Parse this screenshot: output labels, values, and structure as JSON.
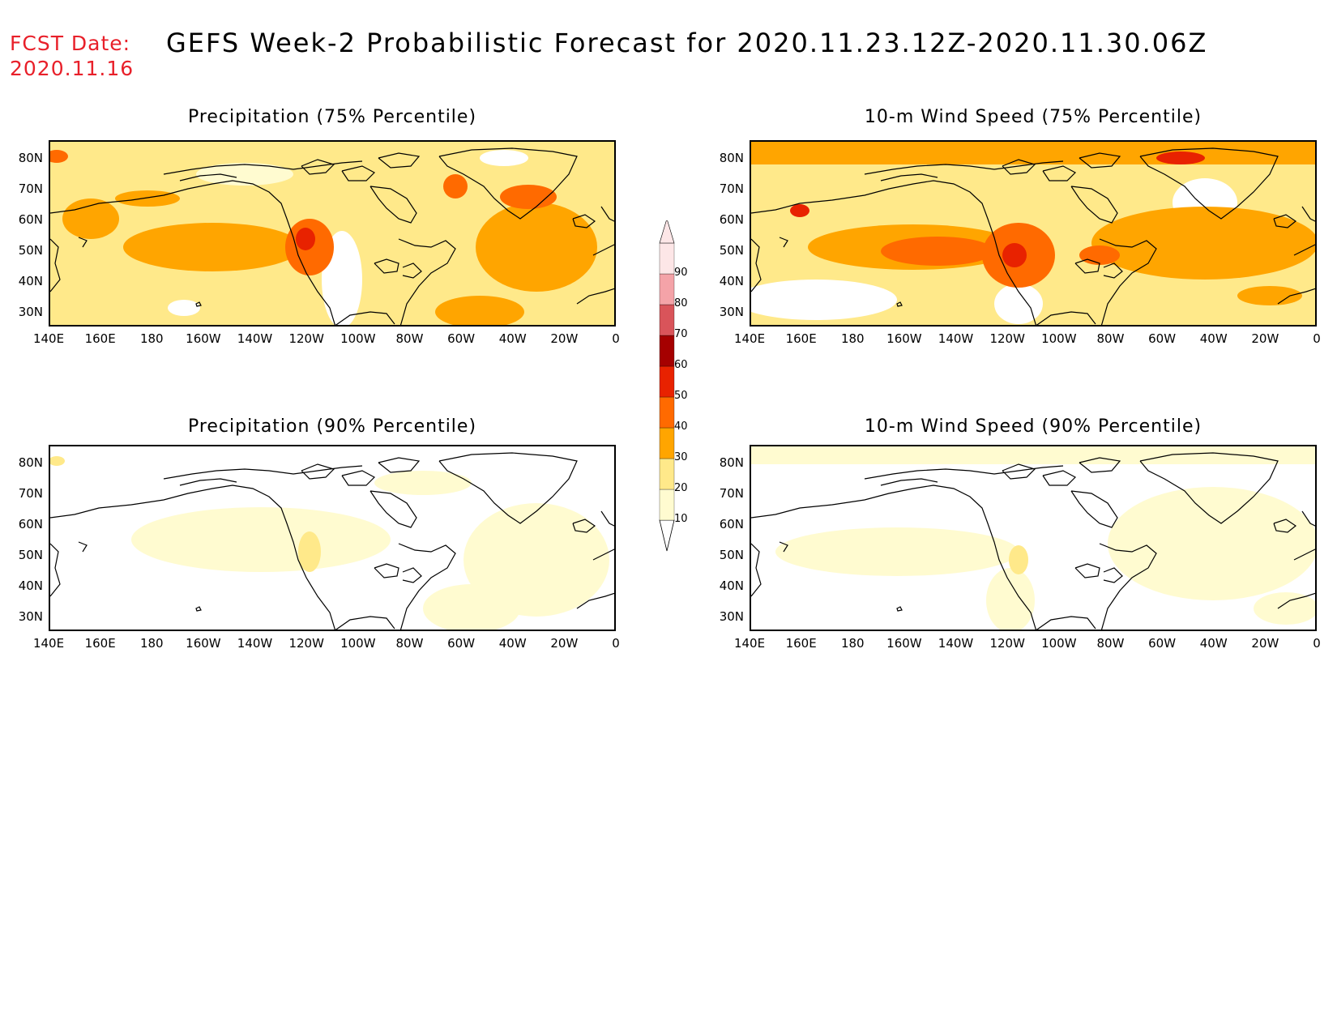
{
  "header": {
    "fcst_label": "FCST Date:",
    "fcst_date": "2020.11.16",
    "title": "GEFS Week-2 Probabilistic Forecast for 2020.11.23.12Z-2020.11.30.06Z"
  },
  "panels": [
    {
      "id": "p75",
      "title": "Precipitation (75% Percentile)"
    },
    {
      "id": "w75",
      "title": "10-m Wind Speed (75% Percentile)"
    },
    {
      "id": "p90",
      "title": "Precipitation (90% Percentile)"
    },
    {
      "id": "w90",
      "title": "10-m Wind Speed (90% Percentile)"
    }
  ],
  "axes": {
    "lat_labels": [
      "80N",
      "70N",
      "60N",
      "50N",
      "40N",
      "30N"
    ],
    "lon_labels": [
      "140E",
      "160E",
      "180",
      "160W",
      "140W",
      "120W",
      "100W",
      "80W",
      "60W",
      "40W",
      "20W",
      "0"
    ]
  },
  "colorbar": {
    "levels": [
      "10",
      "20",
      "30",
      "40",
      "50",
      "60",
      "70",
      "80",
      "90"
    ],
    "colors": [
      "#fffbd0",
      "#ffe98a",
      "#ffa500",
      "#ff6a00",
      "#e82200",
      "#a50000",
      "#d9545a",
      "#f4a3a8",
      "#fde6e7"
    ]
  }
}
